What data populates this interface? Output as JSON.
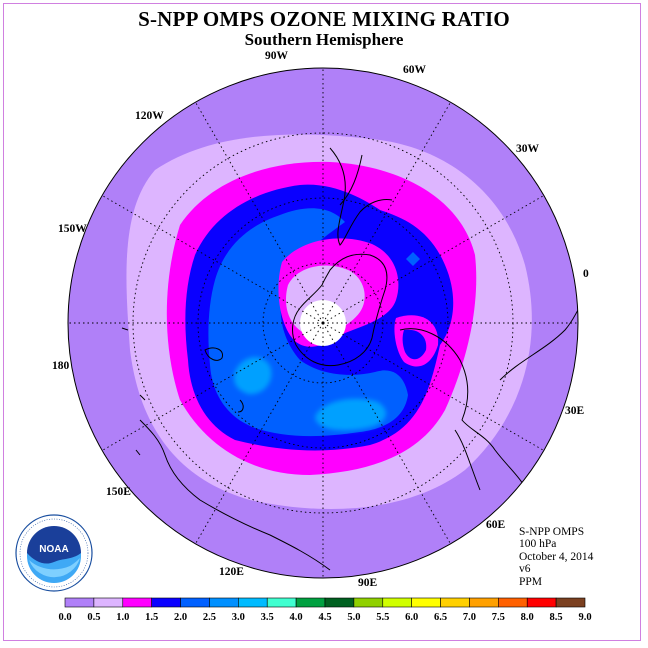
{
  "title": "S-NPP OMPS OZONE MIXING RATIO",
  "subtitle": "Southern Hemisphere",
  "longitude_labels": [
    "90W",
    "60W",
    "30W",
    "0",
    "30E",
    "60E",
    "90E",
    "120E",
    "150E",
    "180",
    "150W",
    "120W"
  ],
  "info": {
    "instrument": "S-NPP OMPS",
    "pressure_level": "100 hPa",
    "date": "October 4, 2014",
    "version": "v6",
    "units": "PPM"
  },
  "colorbar": {
    "ticks": [
      "0.0",
      "0.5",
      "1.0",
      "1.5",
      "2.0",
      "2.5",
      "3.0",
      "3.5",
      "4.0",
      "4.5",
      "5.0",
      "5.5",
      "6.0",
      "6.5",
      "7.0",
      "7.5",
      "8.0",
      "8.5",
      "9.0"
    ],
    "colors": [
      "#b080f8",
      "#ddb5ff",
      "#ff00ff",
      "#0a00ff",
      "#0060ff",
      "#0090ff",
      "#00bbff",
      "#40ffd0",
      "#00a040",
      "#006020",
      "#90d000",
      "#d0ff00",
      "#ffff00",
      "#ffd000",
      "#ffa000",
      "#ff6000",
      "#ff0000",
      "#d00000",
      "#7b4020"
    ]
  },
  "logo": {
    "text": "NOAA",
    "icon": "noaa-logo-icon"
  },
  "map": {
    "projection": "polar-stereographic",
    "hemisphere": "south",
    "land_color": "#ffffff"
  }
}
